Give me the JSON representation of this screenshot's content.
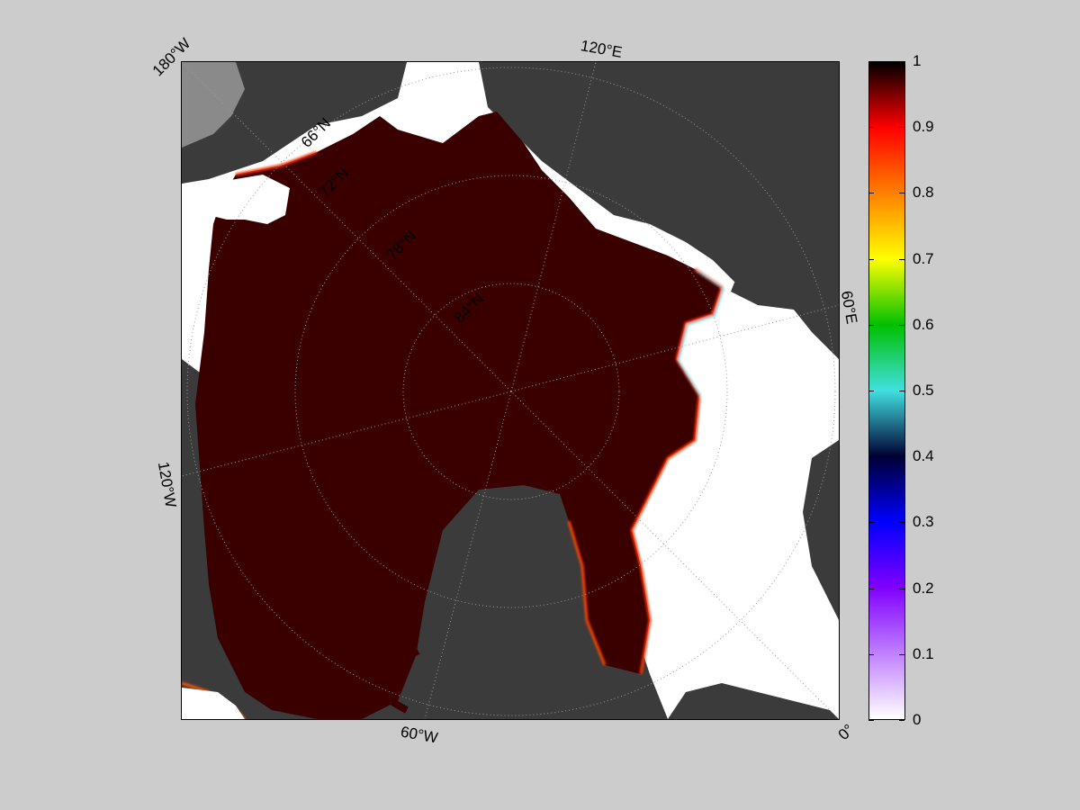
{
  "map": {
    "longitude_labels": [
      {
        "id": "lon-180w",
        "text": "180°W"
      },
      {
        "id": "lon-120e",
        "text": "120°E"
      },
      {
        "id": "lon-60e",
        "text": "60°E"
      },
      {
        "id": "lon-120w",
        "text": "120°W"
      },
      {
        "id": "lon-60w",
        "text": "60°W"
      },
      {
        "id": "lon-0",
        "text": "0°"
      }
    ],
    "latitude_labels": [
      {
        "id": "lat-66n",
        "text": "66°N"
      },
      {
        "id": "lat-72n",
        "text": "72°N"
      },
      {
        "id": "lat-78n",
        "text": "78°N"
      },
      {
        "id": "lat-84n",
        "text": "84°N"
      }
    ],
    "colors": {
      "ice": "#3a0000",
      "land": "#3b3b3b",
      "coast_gray": "#8a8a8a",
      "open_water": "#ffffff",
      "background": "#cccccc"
    }
  },
  "colorbar": {
    "ticks": [
      "1",
      "0.9",
      "0.8",
      "0.7",
      "0.6",
      "0.5",
      "0.4",
      "0.3",
      "0.2",
      "0.1",
      "0"
    ],
    "range": [
      0,
      1
    ],
    "colormap": [
      "#ffffff",
      "#c080ff",
      "#8000ff",
      "#0000ff",
      "#000033",
      "#40e0e0",
      "#00c000",
      "#ffff00",
      "#ff8000",
      "#ff0000",
      "#000000"
    ]
  }
}
